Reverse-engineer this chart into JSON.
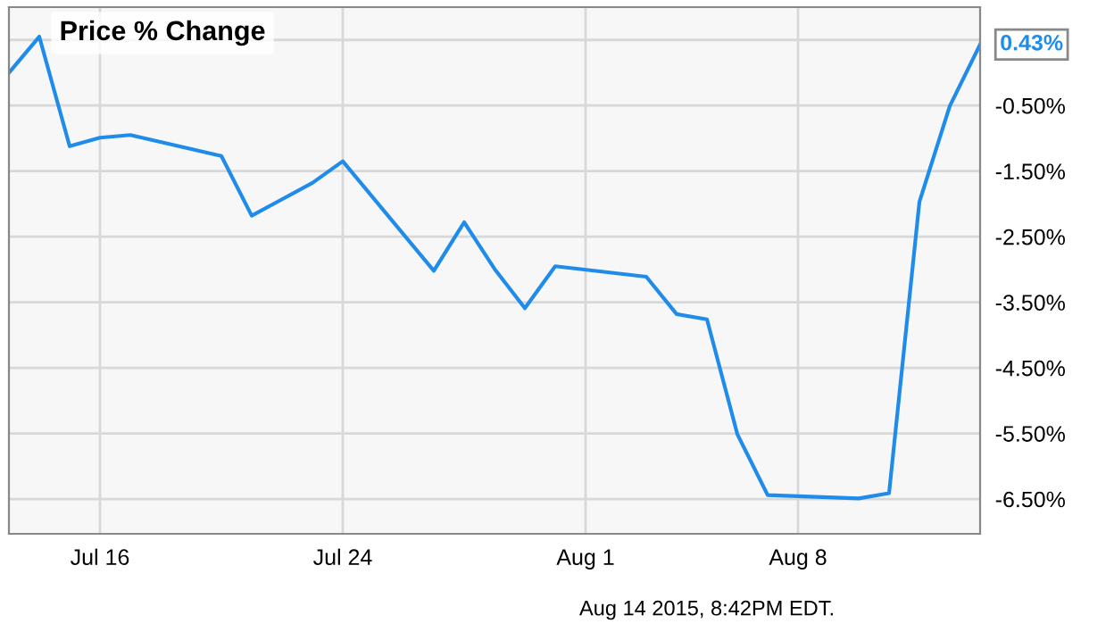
{
  "chart_data": {
    "type": "line",
    "title": "Price % Change",
    "x": [
      "2015-07-13",
      "2015-07-14",
      "2015-07-15",
      "2015-07-16",
      "2015-07-17",
      "2015-07-20",
      "2015-07-21",
      "2015-07-22",
      "2015-07-23",
      "2015-07-24",
      "2015-07-27",
      "2015-07-28",
      "2015-07-29",
      "2015-07-30",
      "2015-07-31",
      "2015-08-03",
      "2015-08-04",
      "2015-08-05",
      "2015-08-06",
      "2015-08-07",
      "2015-08-10",
      "2015-08-11",
      "2015-08-12",
      "2015-08-13",
      "2015-08-14"
    ],
    "series": [
      {
        "color": "#1f8ceb",
        "values": [
          0.0,
          0.55,
          -1.12,
          -0.99,
          -0.95,
          -1.27,
          -2.18,
          -1.93,
          -1.68,
          -1.35,
          -3.02,
          -2.28,
          -2.99,
          -3.59,
          -2.95,
          -3.11,
          -3.68,
          -3.76,
          -5.51,
          -6.44,
          -6.49,
          -6.41,
          -1.97,
          -0.51,
          0.43
        ]
      }
    ],
    "xlim": [
      "2015-07-13",
      "2015-08-14"
    ],
    "xticks": [
      {
        "value": "2015-07-16",
        "label": "Jul 16"
      },
      {
        "value": "2015-07-24",
        "label": "Jul 24"
      },
      {
        "value": "2015-08-01",
        "label": "Aug 1"
      },
      {
        "value": "2015-08-08",
        "label": "Aug 8"
      }
    ],
    "ylim": [
      -7.03,
      1.0
    ],
    "yticks": [
      {
        "value": -6.5,
        "label": "-6.50%"
      },
      {
        "value": -5.5,
        "label": "-5.50%"
      },
      {
        "value": -4.5,
        "label": "-4.50%"
      },
      {
        "value": -3.5,
        "label": "-3.50%"
      },
      {
        "value": -2.5,
        "label": "-2.50%"
      },
      {
        "value": -1.5,
        "label": "-1.50%"
      },
      {
        "value": -0.5,
        "label": "-0.50%"
      },
      {
        "value": 0.5,
        "label": null
      }
    ],
    "grid": true,
    "marker": "none",
    "line_style": "solid",
    "legend": false,
    "annotations": [
      {
        "text": "0.43%",
        "x": "2015-08-14",
        "y": 0.43
      },
      "Aug 14 2015, 8:42PM EDT."
    ]
  }
}
